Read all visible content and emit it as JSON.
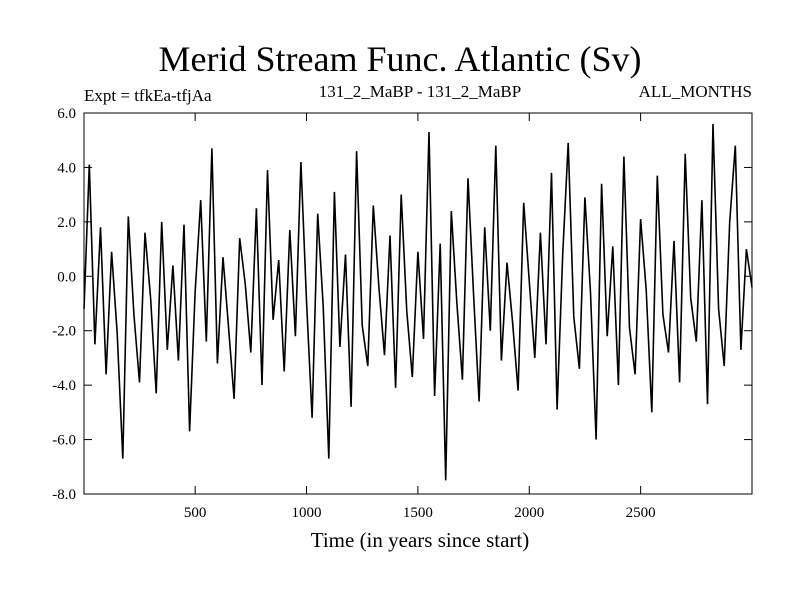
{
  "header": {
    "title": "Merid Stream Func. Atlantic (Sv)",
    "expt": "Expt = tfkEa-tfjAa",
    "runs": "131_2_MaBP - 131_2_MaBP",
    "months": "ALL_MONTHS"
  },
  "chart_data": {
    "type": "line",
    "title": "Merid Stream Func. Atlantic (Sv)",
    "xlabel": "Time (in years since start)",
    "ylabel": "",
    "xlim": [
      1,
      3000
    ],
    "ylim": [
      -8.0,
      6.0
    ],
    "x_ticks": [
      500,
      1000,
      1500,
      2000,
      2500
    ],
    "y_ticks": [
      -8.0,
      -6.0,
      -4.0,
      -2.0,
      0.0,
      2.0,
      4.0,
      6.0
    ],
    "y_tick_labels": [
      "-8.0",
      "-6.0",
      "-4.0",
      "-2.0",
      "0.0",
      "2.0",
      "4.0",
      "6.0"
    ],
    "grid": false,
    "series": [
      {
        "color": "#000000",
        "sampled_every_years": 25,
        "x": [
          1,
          25,
          50,
          75,
          100,
          125,
          150,
          175,
          200,
          225,
          250,
          275,
          300,
          325,
          350,
          375,
          400,
          425,
          450,
          475,
          500,
          525,
          550,
          575,
          600,
          625,
          650,
          675,
          700,
          725,
          750,
          775,
          800,
          825,
          850,
          875,
          900,
          925,
          950,
          975,
          1000,
          1025,
          1050,
          1075,
          1100,
          1125,
          1150,
          1175,
          1200,
          1225,
          1250,
          1275,
          1300,
          1325,
          1350,
          1375,
          1400,
          1425,
          1450,
          1475,
          1500,
          1525,
          1550,
          1575,
          1600,
          1625,
          1650,
          1675,
          1700,
          1725,
          1750,
          1775,
          1800,
          1825,
          1850,
          1875,
          1900,
          1925,
          1950,
          1975,
          2000,
          2025,
          2050,
          2075,
          2100,
          2125,
          2150,
          2175,
          2200,
          2225,
          2250,
          2275,
          2300,
          2325,
          2350,
          2375,
          2400,
          2425,
          2450,
          2475,
          2500,
          2525,
          2550,
          2575,
          2600,
          2625,
          2650,
          2675,
          2700,
          2725,
          2750,
          2775,
          2800,
          2825,
          2850,
          2875,
          2900,
          2925,
          2950,
          2975,
          3000
        ],
        "values": [
          -1.2,
          4.1,
          -2.5,
          1.8,
          -3.6,
          0.9,
          -2.1,
          -6.7,
          2.2,
          -1.4,
          -3.9,
          1.6,
          -0.8,
          -4.3,
          2.0,
          -2.7,
          0.4,
          -3.1,
          1.9,
          -5.7,
          -0.6,
          2.8,
          -2.4,
          4.7,
          -3.2,
          0.7,
          -1.9,
          -4.5,
          1.4,
          -0.3,
          -2.8,
          2.5,
          -4.0,
          3.9,
          -1.6,
          0.6,
          -3.5,
          1.7,
          -2.2,
          4.2,
          -0.9,
          -5.2,
          2.3,
          -1.1,
          -6.7,
          3.1,
          -2.6,
          0.8,
          -4.8,
          4.6,
          -1.8,
          -3.3,
          2.6,
          -0.4,
          -2.9,
          1.5,
          -4.1,
          3.0,
          -1.3,
          -3.7,
          0.9,
          -2.3,
          5.3,
          -4.4,
          1.2,
          -7.5,
          2.4,
          -1.0,
          -3.8,
          3.6,
          -0.7,
          -4.6,
          1.8,
          -2.0,
          4.8,
          -3.1,
          0.5,
          -1.7,
          -4.2,
          2.7,
          -0.2,
          -3.0,
          1.6,
          -2.5,
          3.8,
          -4.9,
          0.8,
          4.9,
          -1.5,
          -3.4,
          2.9,
          -0.6,
          -6.0,
          3.4,
          -2.2,
          1.1,
          -4.0,
          4.4,
          -1.9,
          -3.6,
          2.1,
          -0.5,
          -5.0,
          3.7,
          -1.4,
          -2.8,
          1.3,
          -3.9,
          4.5,
          -0.8,
          -2.4,
          2.8,
          -4.7,
          5.6,
          -1.2,
          -3.3,
          2.0,
          4.8,
          -2.7,
          1.0,
          -0.4
        ]
      }
    ]
  }
}
